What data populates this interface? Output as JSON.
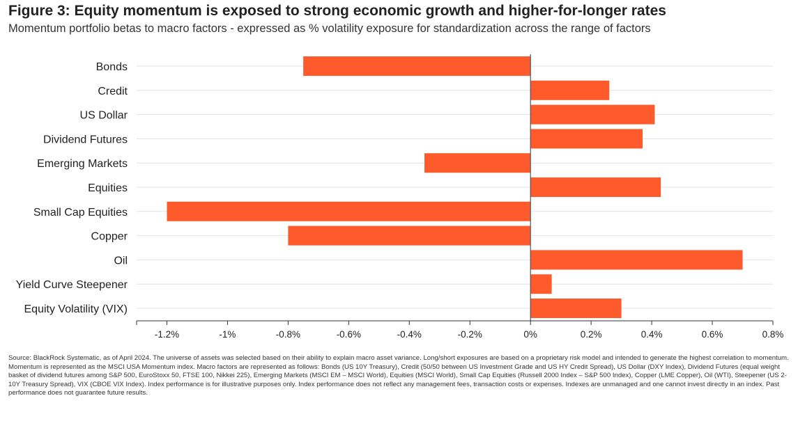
{
  "title": "Figure 3: Equity momentum is exposed to strong economic growth and higher-for-longer rates",
  "subtitle": "Momentum portfolio betas to macro factors - expressed as % volatility exposure for standardization across the range of factors",
  "source": "Source: BlackRock Systematic, as of April 2024. The universe of assets was selected based on their ability to explain macro asset variance. Long/short exposures are based on a proprietary risk model and intended to generate the highest correlation to momentum. Momentum is represented as the MSCI USA Momentum index. Macro factors are represented as follows: Bonds (US 10Y Treasury), Credit (50/50 between US Investment Grade and US HY Credit Spread), US Dollar (DXY Index), Dividend Futures (equal weight basket of dividend futures among S&P 500, EuroStoxx 50, FTSE 100, Nikkei 225), Emerging Markets (MSCI EM – MSCI World), Equities (MSCI World), Small Cap Equities (Russell 2000 Index – S&P 500 Index), Copper (LME Copper), Oil (WTI), Steepener (US 2-10Y Treasury Spread), VIX (CBOE VIX Index). Index performance is for illustrative purposes only. Index performance does not reflect any management fees, transaction costs or expenses. Indexes are unmanaged and one cannot invest directly in an index. Past performance does not guarantee future results.",
  "chart_data": {
    "type": "bar",
    "orientation": "horizontal",
    "categories": [
      "Bonds",
      "Credit",
      "US Dollar",
      "Dividend Futures",
      "Emerging Markets",
      "Equities",
      "Small Cap Equities",
      "Copper",
      "Oil",
      "Yield Curve Steepener",
      "Equity Volatility (VIX)"
    ],
    "values": [
      -0.75,
      0.26,
      0.41,
      0.37,
      -0.35,
      0.43,
      -1.2,
      -0.8,
      0.7,
      0.07,
      0.3
    ],
    "xlim": [
      -1.3,
      0.8
    ],
    "ticks": [
      -1.2,
      -1.0,
      -0.8,
      -0.6,
      -0.4,
      -0.2,
      0,
      0.2,
      0.4,
      0.6,
      0.8
    ],
    "tick_labels": [
      "-1.2%",
      "-1%",
      "-0.8%",
      "-0.6%",
      "-0.4%",
      "-0.2%",
      "0%",
      "0.2%",
      "0.4%",
      "0.6%",
      "0.8%"
    ],
    "unit": "%",
    "bar_color": "#ff5a2c",
    "grid": true,
    "legend": "none"
  }
}
